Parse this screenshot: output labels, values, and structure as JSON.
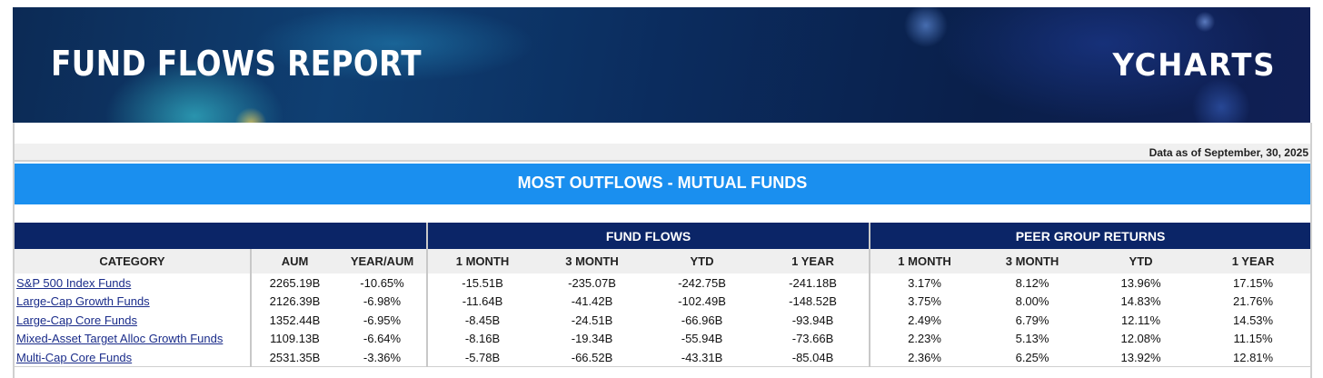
{
  "banner": {
    "title": "FUND FLOWS REPORT",
    "logo": "YCHARTS"
  },
  "as_of": "Data as of September, 30, 2025",
  "section_title": "MOST OUTFLOWS - MUTUAL FUNDS",
  "groups": {
    "fund_flows": "FUND FLOWS",
    "peer_returns": "PEER GROUP RETURNS"
  },
  "columns": [
    "CATEGORY",
    "AUM",
    "YEAR/AUM",
    "1 MONTH",
    "3 MONTH",
    "YTD",
    "1 YEAR",
    "1 MONTH",
    "3 MONTH",
    "YTD",
    "1 YEAR"
  ],
  "rows": [
    [
      "S&P 500 Index Funds",
      "2265.19B",
      "-10.65%",
      "-15.51B",
      "-235.07B",
      "-242.75B",
      "-241.18B",
      "3.17%",
      "8.12%",
      "13.96%",
      "17.15%"
    ],
    [
      "Large-Cap Growth Funds",
      "2126.39B",
      "-6.98%",
      "-11.64B",
      "-41.42B",
      "-102.49B",
      "-148.52B",
      "3.75%",
      "8.00%",
      "14.83%",
      "21.76%"
    ],
    [
      "Large-Cap Core Funds",
      "1352.44B",
      "-6.95%",
      "-8.45B",
      "-24.51B",
      "-66.96B",
      "-93.94B",
      "2.49%",
      "6.79%",
      "12.11%",
      "14.53%"
    ],
    [
      "Mixed-Asset Target Alloc Growth Funds",
      "1109.13B",
      "-6.64%",
      "-8.16B",
      "-19.34B",
      "-55.94B",
      "-73.66B",
      "2.23%",
      "5.13%",
      "12.08%",
      "11.15%"
    ],
    [
      "Multi-Cap Core Funds",
      "2531.35B",
      "-3.36%",
      "-5.78B",
      "-66.52B",
      "-43.31B",
      "-85.04B",
      "2.36%",
      "6.25%",
      "13.92%",
      "12.81%"
    ]
  ]
}
